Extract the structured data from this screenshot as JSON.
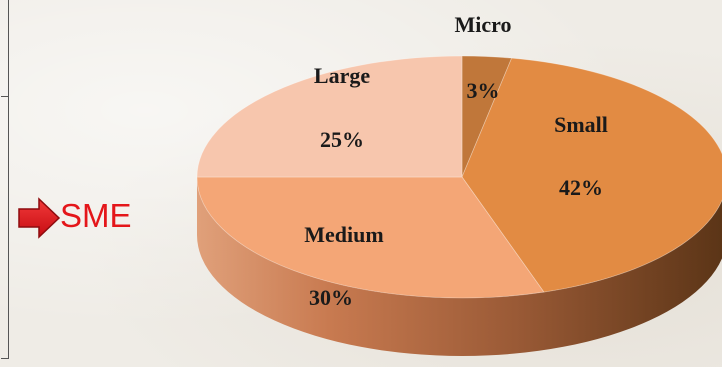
{
  "sme": {
    "label": "SME"
  },
  "chart_data": {
    "type": "pie",
    "title": "",
    "slices": [
      {
        "label": "Micro",
        "value": 3,
        "display": "3%",
        "color": "#c0773a"
      },
      {
        "label": "Small",
        "value": 42,
        "display": "42%",
        "color": "#e28b43"
      },
      {
        "label": "Medium",
        "value": 30,
        "display": "30%",
        "color": "#f4a676"
      },
      {
        "label": "Large",
        "value": 25,
        "display": "25%",
        "color": "#f7c6ad"
      }
    ]
  }
}
